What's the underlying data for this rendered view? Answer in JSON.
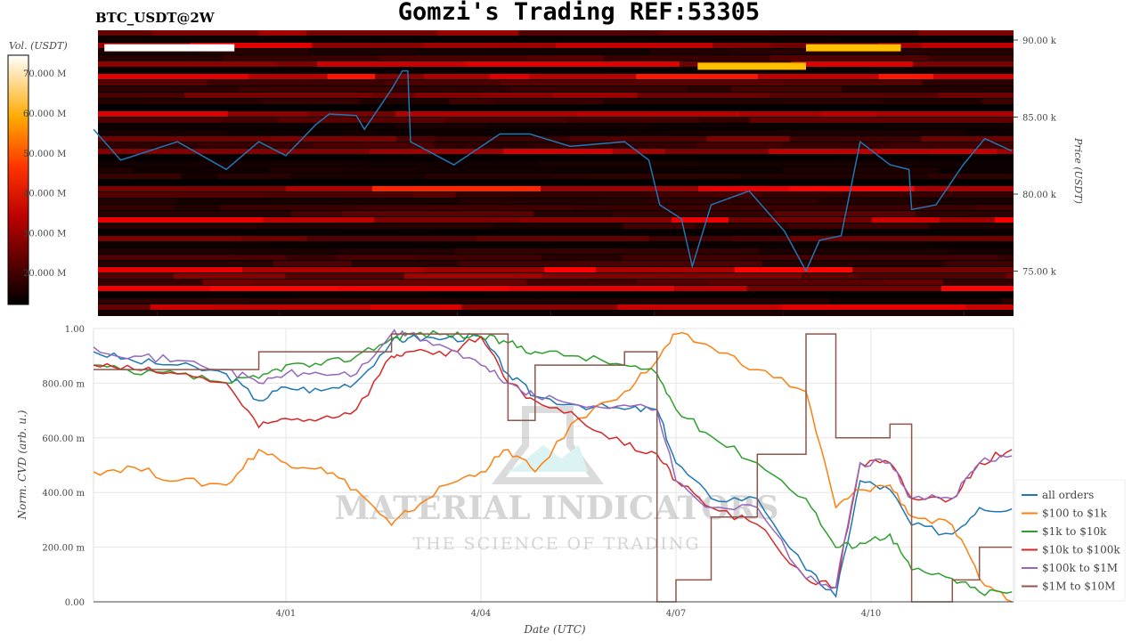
{
  "title": "Gomzi's Trading REF:53305",
  "symbol": "BTC_USDT@2W",
  "watermark": {
    "line1": "MATERIAL INDICATORS",
    "line2": "THE SCIENCE OF TRADING"
  },
  "chart_data": [
    {
      "type": "heatmap",
      "ylabel": "Price (USDT)",
      "yticks": [
        "75.00 k",
        "80.00 k",
        "85.00 k",
        "90.00 k"
      ],
      "ytick_values": [
        75000,
        80000,
        85000,
        90000
      ],
      "ylim": [
        72500,
        90700
      ],
      "colorbar": {
        "label": "Vol. (USDT)",
        "ticks": [
          "20.000 M",
          "30.000 M",
          "40.000 M",
          "50.000 M",
          "60.000 M",
          "70.000 M"
        ],
        "tick_values": [
          20,
          30,
          40,
          50,
          60,
          70
        ],
        "range": [
          12,
          74.5
        ],
        "colormap": "hot"
      },
      "highlight_bands": [
        {
          "price": 89500,
          "from": "2025-03-29T05:00",
          "to": "2025-03-31T05:00",
          "volume_m": 74
        },
        {
          "price": 88300,
          "from": "2025-04-07T08:00",
          "to": "2025-04-09T00:00",
          "volume_m": 62
        },
        {
          "price": 89500,
          "from": "2025-04-09T00:00",
          "to": "2025-04-10T11:00",
          "volume_m": 63
        }
      ],
      "price_line": {
        "color": "#1f77b4",
        "points": [
          [
            "2025-03-29T01:00",
            84200
          ],
          [
            "2025-03-29T11:00",
            82200
          ],
          [
            "2025-03-30T08:00",
            83400
          ],
          [
            "2025-03-31T02:00",
            81600
          ],
          [
            "2025-03-31T14:00",
            83400
          ],
          [
            "2025-04-01T00:00",
            82500
          ],
          [
            "2025-04-01T11:00",
            84500
          ],
          [
            "2025-04-01T16:00",
            85200
          ],
          [
            "2025-04-02T02:00",
            85100
          ],
          [
            "2025-04-02T05:00",
            84200
          ],
          [
            "2025-04-02T15:00",
            86800
          ],
          [
            "2025-04-02T19:00",
            88000
          ],
          [
            "2025-04-02T21:00",
            88000
          ],
          [
            "2025-04-02T22:00",
            83400
          ],
          [
            "2025-04-03T14:00",
            81900
          ],
          [
            "2025-04-04T07:00",
            83900
          ],
          [
            "2025-04-04T18:00",
            83900
          ],
          [
            "2025-04-05T09:00",
            83100
          ],
          [
            "2025-04-06T05:00",
            83400
          ],
          [
            "2025-04-06T14:00",
            82200
          ],
          [
            "2025-04-06T18:00",
            79300
          ],
          [
            "2025-04-07T02:00",
            78400
          ],
          [
            "2025-04-07T06:00",
            75300
          ],
          [
            "2025-04-07T13:00",
            79300
          ],
          [
            "2025-04-08T03:00",
            80200
          ],
          [
            "2025-04-08T16:00",
            77600
          ],
          [
            "2025-04-09T00:00",
            75000
          ],
          [
            "2025-04-09T05:00",
            77000
          ],
          [
            "2025-04-09T13:00",
            77300
          ],
          [
            "2025-04-09T20:00",
            83400
          ],
          [
            "2025-04-10T07:00",
            81900
          ],
          [
            "2025-04-10T14:00",
            81600
          ],
          [
            "2025-04-10T15:00",
            79000
          ],
          [
            "2025-04-11T00:00",
            79300
          ],
          [
            "2025-04-11T10:00",
            81900
          ],
          [
            "2025-04-11T18:00",
            83600
          ],
          [
            "2025-04-12T04:00",
            82800
          ]
        ]
      }
    },
    {
      "type": "line",
      "xlabel": "Date (UTC)",
      "ylabel": "Norm. CVD (arb. u.)",
      "ylim": [
        0,
        1
      ],
      "xlim": [
        "2025-03-29T00:00",
        "2025-04-12T04:00"
      ],
      "xticks": [
        "4/01",
        "4/04",
        "4/07",
        "4/10"
      ],
      "xtick_values": [
        "2025-04-01T00:00",
        "2025-04-04T00:00",
        "2025-04-07T00:00",
        "2025-04-10T00:00"
      ],
      "yticks": [
        "0.00",
        "200.00 m",
        "400.00 m",
        "600.00 m",
        "800.00 m",
        "1.00"
      ],
      "ytick_values": [
        0,
        0.2,
        0.4,
        0.6,
        0.8,
        1.0
      ],
      "grid": true,
      "legend": "bottom-right",
      "times": [
        "2025-03-29T01:00",
        "2025-03-29T16:00",
        "2025-03-30T08:00",
        "2025-03-31T02:00",
        "2025-03-31T14:00",
        "2025-04-01T00:00",
        "2025-04-01T13:00",
        "2025-04-02T02:00",
        "2025-04-02T15:00",
        "2025-04-02T21:00",
        "2025-04-03T11:00",
        "2025-04-04T00:00",
        "2025-04-04T10:00",
        "2025-04-04T20:00",
        "2025-04-05T12:00",
        "2025-04-06T05:00",
        "2025-04-06T17:00",
        "2025-04-07T00:00",
        "2025-04-07T13:00",
        "2025-04-08T06:00",
        "2025-04-09T00:00",
        "2025-04-09T11:00",
        "2025-04-09T20:00",
        "2025-04-10T07:00",
        "2025-04-10T15:00",
        "2025-04-11T06:00",
        "2025-04-11T16:00",
        "2025-04-12T04:00"
      ],
      "series": [
        {
          "name": "all orders",
          "color": "#1f77b4",
          "values": [
            0.915,
            0.88,
            0.866,
            0.834,
            0.736,
            0.785,
            0.772,
            0.805,
            0.951,
            0.964,
            0.964,
            0.97,
            0.834,
            0.752,
            0.72,
            0.704,
            0.704,
            0.508,
            0.378,
            0.378,
            0.117,
            0.02,
            0.443,
            0.41,
            0.28,
            0.248,
            0.345,
            0.34
          ]
        },
        {
          "name": "$100 to $1k",
          "color": "#ff7f0e",
          "values": [
            0.476,
            0.492,
            0.443,
            0.427,
            0.557,
            0.508,
            0.492,
            0.41,
            0.28,
            0.329,
            0.427,
            0.476,
            0.557,
            0.476,
            0.671,
            0.769,
            0.883,
            0.98,
            0.932,
            0.85,
            0.769,
            0.345,
            0.41,
            0.427,
            0.313,
            0.28,
            0.085,
            0
          ]
        },
        {
          "name": "$1k to $10k",
          "color": "#2ca02c",
          "values": [
            0.866,
            0.834,
            0.834,
            0.801,
            0.818,
            0.866,
            0.866,
            0.899,
            0.964,
            0.98,
            0.98,
            0.97,
            0.948,
            0.915,
            0.899,
            0.866,
            0.834,
            0.704,
            0.606,
            0.508,
            0.378,
            0.199,
            0.215,
            0.248,
            0.117,
            0.085,
            0.036,
            0.036
          ]
        },
        {
          "name": "$10k to $100k",
          "color": "#d62728",
          "values": [
            0.866,
            0.85,
            0.834,
            0.801,
            0.638,
            0.671,
            0.671,
            0.704,
            0.899,
            0.915,
            0.899,
            0.97,
            0.801,
            0.736,
            0.671,
            0.573,
            0.541,
            0.443,
            0.345,
            0.283,
            0.085,
            0.052,
            0.508,
            0.508,
            0.378,
            0.378,
            0.508,
            0.557
          ]
        },
        {
          "name": "$100k to $1M",
          "color": "#9467bd",
          "values": [
            0.932,
            0.899,
            0.883,
            0.85,
            0.801,
            0.834,
            0.834,
            0.834,
            0.98,
            0.98,
            0.932,
            0.866,
            0.801,
            0.752,
            0.72,
            0.72,
            0.704,
            0.443,
            0.345,
            0.345,
            0.085,
            0.052,
            0.508,
            0.508,
            0.378,
            0.378,
            0.508,
            0.534
          ]
        },
        {
          "name": "$1M to $10M",
          "color": "#8c564b",
          "step": true,
          "values": [
            0.85,
            0.85,
            0.85,
            0.85,
            0.915,
            0.915,
            0.915,
            0.915,
            0.98,
            0.98,
            0.98,
            0.98,
            0.664,
            0.866,
            0.866,
            0.915,
            0,
            0.08,
            0.31,
            0.54,
            0.98,
            0.6,
            0.6,
            0.65,
            0,
            0.08,
            0.2,
            0.2
          ]
        }
      ]
    }
  ]
}
